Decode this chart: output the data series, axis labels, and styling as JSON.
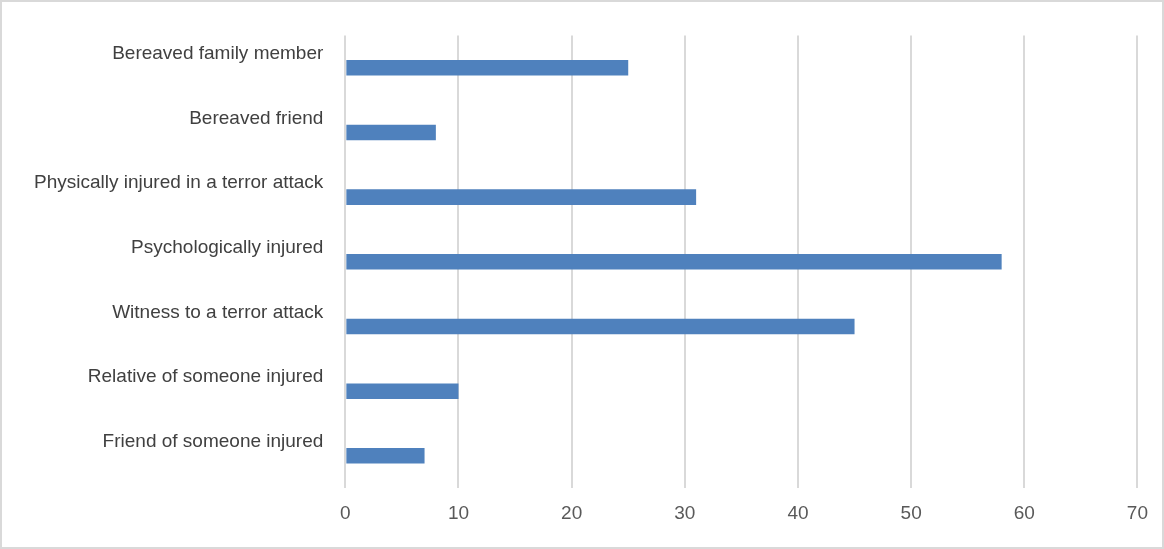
{
  "chart_data": {
    "type": "bar",
    "orientation": "horizontal",
    "categories": [
      "Bereaved family member",
      "Bereaved friend",
      "Physically injured in a terror attack",
      "Psychologically injured",
      "Witness to a terror attack",
      "Relative of someone injured",
      "Friend of someone injured"
    ],
    "values": [
      25,
      8,
      31,
      58,
      45,
      10,
      7
    ],
    "color": "#4f81bd",
    "xlim": [
      0,
      70
    ],
    "xticks": [
      0,
      10,
      20,
      30,
      40,
      50,
      60,
      70
    ],
    "grid": "x",
    "legend": false
  }
}
